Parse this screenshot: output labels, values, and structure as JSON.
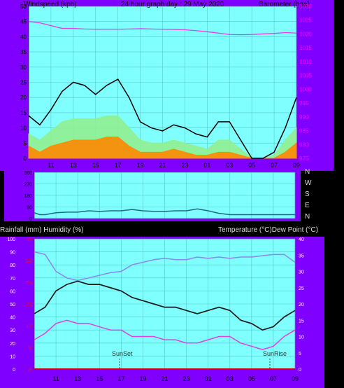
{
  "header": {
    "left": "Windspeed (kph)",
    "center": "24 hour graph day : 29 May 2020",
    "right": "Barometer (hpa)"
  },
  "colors": {
    "frame": "#7f00ff",
    "plot_bg": "#80ffff",
    "grid": "#55c8c8",
    "axis_text": "#000000",
    "right_axis_text": "#ff00ff",
    "rain_axis_text": "#ff0000",
    "gust": "#000000",
    "wind_avg": "#90f090",
    "wind_low": "#ff8800",
    "barometer": "#e040e0",
    "direction": "#1f6a86",
    "humidity": "#8888ee",
    "temperature": "#1a1a1a",
    "dewpoint": "#e040e0",
    "rain": "#cc0000"
  },
  "x_hours": [
    "11",
    "13",
    "15",
    "17",
    "19",
    "21",
    "23",
    "01",
    "03",
    "05",
    "07",
    "09"
  ],
  "chart_data": [
    {
      "type": "line",
      "title": "Windspeed (kph) / Barometer (hpa)",
      "y_left_label": "Windspeed (kph)",
      "y_left_ticks": [
        0,
        5,
        10,
        15,
        20,
        25,
        30,
        35,
        40,
        45,
        50
      ],
      "y_right_label": "Barometer (hpa)",
      "y_right_ticks": [
        975,
        980,
        985,
        990,
        995,
        1000,
        1005,
        1010,
        1015,
        1020,
        1025,
        1030
      ],
      "x": [
        9,
        10,
        11,
        12,
        13,
        14,
        15,
        16,
        17,
        18,
        19,
        20,
        21,
        22,
        23,
        24,
        25,
        26,
        27,
        28,
        29,
        30,
        31,
        32,
        33
      ],
      "series": [
        {
          "name": "Gust",
          "values": [
            14,
            11,
            16,
            22,
            25,
            24,
            21,
            24,
            26,
            20,
            12,
            10,
            9,
            11,
            10,
            8,
            7,
            12,
            12,
            6,
            0,
            0,
            2,
            10,
            20
          ]
        },
        {
          "name": "Average",
          "values": [
            8,
            6,
            9,
            12,
            13,
            13,
            13,
            14,
            14,
            10,
            6,
            5,
            5,
            6,
            5,
            4,
            3,
            6,
            6,
            3,
            0,
            0,
            1,
            6,
            10
          ]
        },
        {
          "name": "Low",
          "values": [
            4,
            2,
            4,
            5,
            6,
            6,
            6,
            7,
            7,
            4,
            2,
            2,
            2,
            3,
            2,
            1,
            1,
            2,
            2,
            1,
            0,
            0,
            0,
            2,
            5
          ]
        },
        {
          "name": "Barometer",
          "values": [
            1024.5,
            1024,
            1023,
            1022,
            1022,
            1021.8,
            1021.7,
            1021.7,
            1021.7,
            1021.8,
            1021.9,
            1021.8,
            1021.7,
            1021.6,
            1021.5,
            1021.2,
            1020.8,
            1020.3,
            1019.8,
            1019.7,
            1019.8,
            1020,
            1020.2,
            1020.5,
            1020.3
          ]
        }
      ]
    },
    {
      "type": "line",
      "title": "Wind direction",
      "y_left_ticks": [
        0,
        90,
        180,
        270,
        360
      ],
      "y_right_labels": [
        "N",
        "W",
        "S",
        "E",
        "N"
      ],
      "x": [
        9,
        9.5,
        10,
        11,
        12,
        13,
        14,
        15,
        16,
        17,
        18,
        19,
        20,
        21,
        22,
        23,
        24,
        25,
        26,
        27,
        28,
        29,
        30,
        31,
        32,
        33
      ],
      "series": [
        {
          "name": "Direction",
          "values": [
            45,
            30,
            30,
            45,
            50,
            50,
            60,
            55,
            60,
            60,
            70,
            60,
            55,
            55,
            60,
            60,
            75,
            60,
            40,
            30,
            30,
            30,
            30,
            30,
            30,
            30
          ]
        }
      ]
    },
    {
      "type": "line",
      "title": "Rainfall (mm) / Humidity (%) / Temperature (°C) / Dew Point (°C)",
      "y_left_label": "Rainfall (mm)  Humidity (%)",
      "y_left_ticks": [
        0,
        10,
        20,
        30,
        40,
        50,
        60,
        70,
        80,
        90,
        100
      ],
      "y_rain_ticks": [
        0,
        5,
        10,
        15,
        20,
        25,
        30
      ],
      "y_right_label": "Temperature (°C)Dew Point (°C)",
      "y_right_ticks": [
        0,
        5,
        10,
        15,
        20,
        25,
        30,
        35,
        40
      ],
      "x": [
        9,
        10,
        11,
        12,
        13,
        14,
        15,
        16,
        17,
        18,
        19,
        20,
        21,
        22,
        23,
        24,
        25,
        26,
        27,
        28,
        29,
        30,
        31,
        32,
        33
      ],
      "series": [
        {
          "name": "Humidity",
          "values": [
            90,
            88,
            75,
            70,
            68,
            70,
            72,
            74,
            75,
            80,
            82,
            84,
            85,
            84,
            84,
            86,
            85,
            86,
            85,
            86,
            86,
            87,
            88,
            88,
            82
          ]
        },
        {
          "name": "Temperature",
          "values": [
            17,
            19,
            24,
            26,
            27,
            26,
            26,
            25,
            24,
            22,
            21,
            20,
            19,
            19,
            18,
            17,
            18,
            19,
            18,
            15,
            14,
            12,
            13,
            16,
            18
          ]
        },
        {
          "name": "Dew Point",
          "values": [
            9,
            11,
            14,
            15,
            14,
            14,
            13,
            12,
            12,
            10,
            10,
            10,
            9,
            9,
            8,
            8,
            9,
            10,
            10,
            8,
            7,
            6,
            7,
            10,
            12
          ]
        },
        {
          "name": "Rainfall",
          "values": [
            0,
            0,
            0,
            0,
            0,
            0,
            0,
            0,
            0,
            0,
            0,
            0,
            0,
            0,
            0,
            0,
            0,
            0,
            0,
            0,
            0,
            0,
            0,
            0,
            0
          ]
        }
      ]
    }
  ],
  "lower_header": {
    "left": "Rainfall (mm)  Humidity (%)",
    "right": "Temperature (°C)Dew Point (°C)"
  },
  "direction_labels": [
    "N",
    "W",
    "S",
    "E",
    "N"
  ],
  "annotations": {
    "sunset": "SunSet",
    "sunrise": "SunRise"
  }
}
